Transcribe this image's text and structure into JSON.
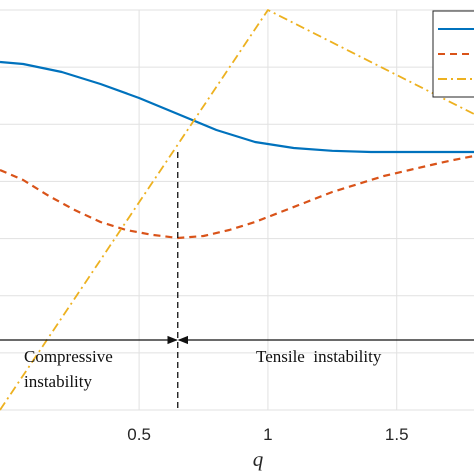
{
  "chart_data": {
    "type": "line",
    "xlabel": "q",
    "xlim": [
      -0.04,
      1.8
    ],
    "ylim": [
      0,
      1
    ],
    "grid": true,
    "x_ticks": [
      0.5,
      1,
      1.5
    ],
    "x_tick_labels": [
      "0.5",
      "1",
      "1.5"
    ],
    "legend": {
      "placement": "top-right"
    },
    "series": [
      {
        "style": "solid",
        "color": "#0072BD",
        "x": [
          -0.04,
          0.05,
          0.2,
          0.35,
          0.5,
          0.65,
          0.8,
          0.95,
          1.1,
          1.25,
          1.4,
          1.5,
          1.6,
          1.7,
          1.8
        ],
        "y": [
          0.87,
          0.865,
          0.845,
          0.815,
          0.78,
          0.74,
          0.7,
          0.67,
          0.655,
          0.648,
          0.645,
          0.645,
          0.645,
          0.645,
          0.645
        ]
      },
      {
        "style": "dashed",
        "color": "#D95319",
        "x": [
          -0.04,
          0.05,
          0.15,
          0.25,
          0.35,
          0.45,
          0.55,
          0.65,
          0.75,
          0.85,
          0.95,
          1.05,
          1.15,
          1.25,
          1.35,
          1.45,
          1.55,
          1.65,
          1.72,
          1.8
        ],
        "y": [
          0.6,
          0.575,
          0.535,
          0.5,
          0.47,
          0.45,
          0.438,
          0.43,
          0.435,
          0.45,
          0.47,
          0.495,
          0.52,
          0.545,
          0.565,
          0.585,
          0.6,
          0.615,
          0.625,
          0.635
        ]
      },
      {
        "style": "dashdot",
        "color": "#EDB120",
        "x": [
          -0.04,
          1.0,
          1.8
        ],
        "y": [
          0.0,
          1.0,
          0.74
        ]
      }
    ],
    "annotations": [
      {
        "text_lines": [
          "Compressive",
          "instability"
        ]
      },
      {
        "text_lines": [
          "Tensile  instability"
        ]
      }
    ],
    "divider_x": 0.65,
    "boundary_y": 0.175
  }
}
